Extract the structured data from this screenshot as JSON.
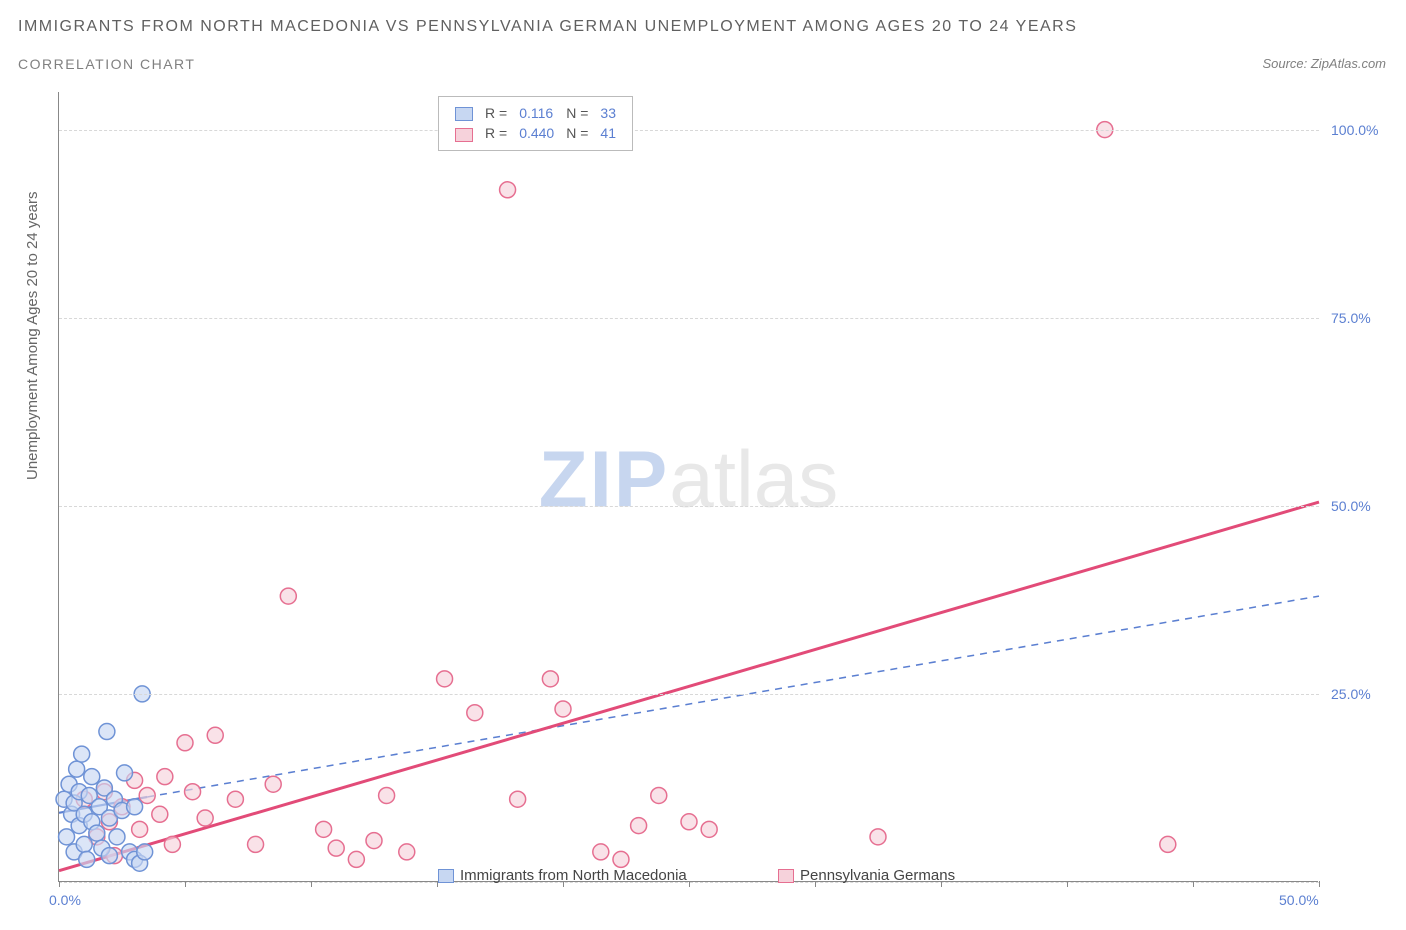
{
  "title": "IMMIGRANTS FROM NORTH MACEDONIA VS PENNSYLVANIA GERMAN UNEMPLOYMENT AMONG AGES 20 TO 24 YEARS",
  "subtitle": "CORRELATION CHART",
  "source": "Source: ZipAtlas.com",
  "yaxis_label": "Unemployment Among Ages 20 to 24 years",
  "watermark_a": "ZIP",
  "watermark_b": "atlas",
  "chart": {
    "type": "scatter",
    "xlim": [
      0,
      50
    ],
    "ylim": [
      0,
      105
    ],
    "x_ticks": [
      0,
      5,
      10,
      15,
      20,
      25,
      30,
      35,
      40,
      45,
      50
    ],
    "x_tick_labels": {
      "0": "0.0%",
      "50": "50.0%"
    },
    "y_grid": [
      0,
      25,
      50,
      75,
      100
    ],
    "y_tick_labels": {
      "25": "25.0%",
      "50": "50.0%",
      "75": "75.0%",
      "100": "100.0%"
    },
    "background_color": "#ffffff",
    "grid_color": "#d8d8d8",
    "axis_color": "#888888",
    "tick_label_color": "#5b7fd1",
    "marker_radius": 8,
    "marker_stroke_width": 1.5,
    "series": [
      {
        "name": "Immigrants from North Macedonia",
        "color_fill": "#c7d7f2",
        "color_stroke": "#6f93d6",
        "R": "0.116",
        "N": "33",
        "trend": {
          "style": "solid_then_dashed",
          "color": "#5b7fd1",
          "width": 2.2,
          "solid_from": [
            0,
            9.2
          ],
          "solid_to": [
            3.5,
            11.3
          ],
          "dashed_from": [
            3.5,
            11.3
          ],
          "dashed_to": [
            50,
            38.0
          ]
        },
        "points": [
          [
            0.2,
            11.0
          ],
          [
            0.3,
            6.0
          ],
          [
            0.4,
            13.0
          ],
          [
            0.5,
            9.0
          ],
          [
            0.6,
            4.0
          ],
          [
            0.6,
            10.5
          ],
          [
            0.7,
            15.0
          ],
          [
            0.8,
            7.5
          ],
          [
            0.8,
            12.0
          ],
          [
            0.9,
            17.0
          ],
          [
            1.0,
            5.0
          ],
          [
            1.0,
            9.0
          ],
          [
            1.1,
            3.0
          ],
          [
            1.2,
            11.5
          ],
          [
            1.3,
            8.0
          ],
          [
            1.3,
            14.0
          ],
          [
            1.5,
            6.5
          ],
          [
            1.6,
            10.0
          ],
          [
            1.7,
            4.5
          ],
          [
            1.8,
            12.5
          ],
          [
            1.9,
            20.0
          ],
          [
            2.0,
            8.5
          ],
          [
            2.0,
            3.5
          ],
          [
            2.2,
            11.0
          ],
          [
            2.3,
            6.0
          ],
          [
            2.5,
            9.5
          ],
          [
            2.6,
            14.5
          ],
          [
            2.8,
            4.0
          ],
          [
            3.0,
            3.0
          ],
          [
            3.0,
            10.0
          ],
          [
            3.2,
            2.5
          ],
          [
            3.4,
            4.0
          ],
          [
            3.3,
            25.0
          ]
        ]
      },
      {
        "name": "Pennsylvania Germans",
        "color_fill": "#f6d2db",
        "color_stroke": "#e66f91",
        "R": "0.440",
        "N": "41",
        "trend": {
          "style": "solid",
          "color": "#e24b78",
          "width": 3,
          "from": [
            0,
            1.5
          ],
          "to": [
            50,
            50.5
          ]
        },
        "points": [
          [
            1.0,
            11.0
          ],
          [
            1.5,
            6.0
          ],
          [
            1.8,
            12.0
          ],
          [
            2.0,
            8.0
          ],
          [
            2.2,
            3.5
          ],
          [
            2.5,
            10.0
          ],
          [
            3.0,
            13.5
          ],
          [
            3.2,
            7.0
          ],
          [
            3.5,
            11.5
          ],
          [
            4.0,
            9.0
          ],
          [
            4.2,
            14.0
          ],
          [
            4.5,
            5.0
          ],
          [
            5.0,
            18.5
          ],
          [
            5.3,
            12.0
          ],
          [
            5.8,
            8.5
          ],
          [
            6.2,
            19.5
          ],
          [
            7.0,
            11.0
          ],
          [
            7.8,
            5.0
          ],
          [
            8.5,
            13.0
          ],
          [
            9.1,
            38.0
          ],
          [
            10.5,
            7.0
          ],
          [
            11.0,
            4.5
          ],
          [
            11.8,
            3.0
          ],
          [
            12.5,
            5.5
          ],
          [
            13.0,
            11.5
          ],
          [
            13.8,
            4.0
          ],
          [
            15.3,
            27.0
          ],
          [
            16.5,
            22.5
          ],
          [
            17.8,
            92.0
          ],
          [
            18.2,
            11.0
          ],
          [
            19.5,
            27.0
          ],
          [
            20.0,
            23.0
          ],
          [
            21.5,
            4.0
          ],
          [
            22.3,
            3.0
          ],
          [
            23.0,
            7.5
          ],
          [
            23.8,
            11.5
          ],
          [
            25.0,
            8.0
          ],
          [
            25.8,
            7.0
          ],
          [
            32.5,
            6.0
          ],
          [
            41.5,
            100.0
          ],
          [
            44.0,
            5.0
          ]
        ]
      }
    ],
    "legend_bottom": [
      {
        "label": "Immigrants from North Macedonia",
        "fill": "#c7d7f2",
        "stroke": "#6f93d6"
      },
      {
        "label": "Pennsylvania Germans",
        "fill": "#f6d2db",
        "stroke": "#e66f91"
      }
    ],
    "legend_top": {
      "label_color": "#555555",
      "value_color": "#5b7fd1",
      "r_label": "R =",
      "n_label": "N ="
    }
  }
}
